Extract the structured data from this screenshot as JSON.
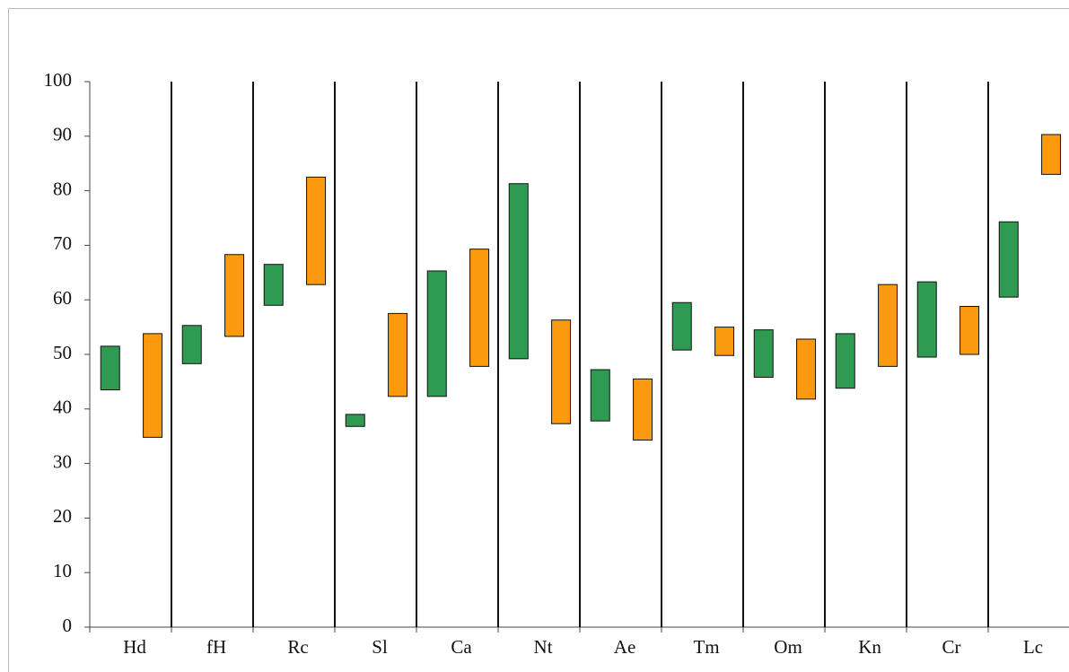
{
  "chart_data": {
    "type": "floating_bar",
    "categories": [
      "Hd",
      "fH",
      "Rc",
      "Sl",
      "Ca",
      "Nt",
      "Ae",
      "Tm",
      "Om",
      "Kn",
      "Cr",
      "Lc"
    ],
    "series": [
      {
        "color": "#2e9a52",
        "low": [
          43.5,
          48.3,
          59,
          36.8,
          42.3,
          49.2,
          37.8,
          50.8,
          45.8,
          43.8,
          49.5,
          60.5
        ],
        "high": [
          51.5,
          55.3,
          66.5,
          39,
          65.3,
          81.3,
          47.2,
          59.5,
          54.5,
          53.8,
          63.3,
          74.3
        ]
      },
      {
        "color": "#fb9a0e",
        "low": [
          34.8,
          53.3,
          62.8,
          42.3,
          47.8,
          37.3,
          34.3,
          49.8,
          41.8,
          47.8,
          50,
          83
        ],
        "high": [
          53.8,
          68.3,
          82.5,
          57.5,
          69.3,
          56.3,
          45.5,
          55,
          52.8,
          62.8,
          58.8,
          90.3
        ]
      }
    ],
    "ylim": [
      0,
      100
    ],
    "yticks": [
      0,
      10,
      20,
      30,
      40,
      50,
      60,
      70,
      80,
      90,
      100
    ]
  }
}
